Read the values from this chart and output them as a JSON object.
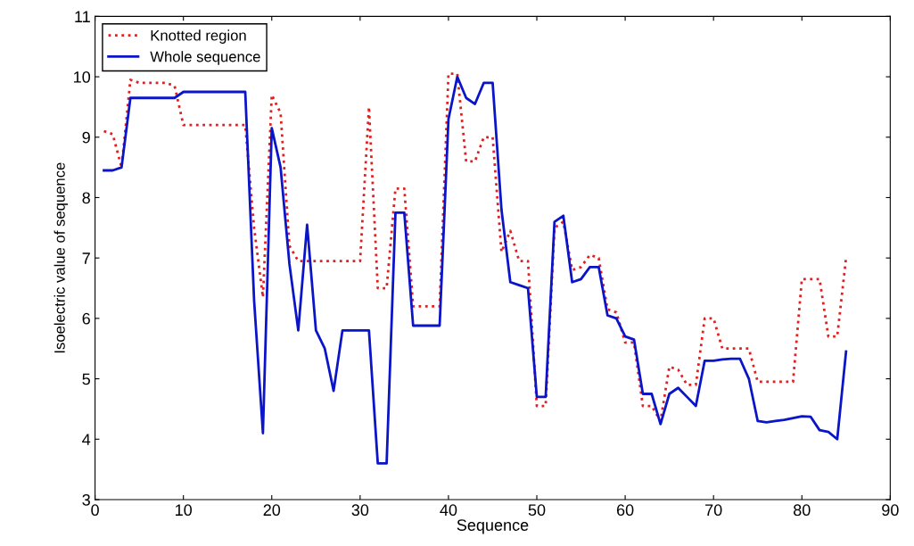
{
  "chart_data": {
    "type": "line",
    "xlabel": "Sequence",
    "ylabel": "Isoelectric value of sequence",
    "x": [
      1,
      2,
      3,
      4,
      5,
      6,
      7,
      8,
      9,
      10,
      11,
      12,
      13,
      14,
      15,
      16,
      17,
      18,
      19,
      20,
      21,
      22,
      23,
      24,
      25,
      26,
      27,
      28,
      29,
      30,
      31,
      32,
      33,
      34,
      35,
      36,
      37,
      38,
      39,
      40,
      41,
      42,
      43,
      44,
      45,
      46,
      47,
      48,
      49,
      50,
      51,
      52,
      53,
      54,
      55,
      56,
      57,
      58,
      59,
      60,
      61,
      62,
      63,
      64,
      65,
      66,
      67,
      68,
      69,
      70,
      71,
      72,
      73,
      74,
      75,
      76,
      77,
      78,
      79,
      80,
      81,
      82,
      83,
      84,
      85
    ],
    "series": [
      {
        "name": "Knotted region",
        "color": "#e02020",
        "line_style": "dotted",
        "values": [
          9.1,
          9.05,
          8.5,
          9.95,
          9.9,
          9.9,
          9.9,
          9.9,
          9.85,
          9.2,
          9.2,
          9.2,
          9.2,
          9.2,
          9.2,
          9.2,
          9.2,
          7.5,
          6.35,
          9.7,
          9.4,
          7.2,
          6.95,
          6.95,
          6.95,
          6.95,
          6.95,
          6.95,
          6.95,
          6.95,
          9.5,
          6.5,
          6.5,
          8.15,
          8.15,
          6.2,
          6.2,
          6.2,
          6.2,
          10.05,
          10.05,
          8.6,
          8.6,
          9.0,
          9.0,
          7.1,
          7.45,
          6.95,
          6.95,
          4.55,
          4.55,
          7.5,
          7.6,
          6.8,
          6.85,
          7.05,
          7.0,
          6.15,
          6.1,
          5.6,
          5.6,
          4.55,
          4.55,
          4.3,
          5.2,
          5.15,
          4.9,
          4.9,
          6.0,
          6.0,
          5.5,
          5.5,
          5.5,
          5.5,
          4.95,
          4.95,
          4.95,
          4.95,
          4.95,
          6.65,
          6.65,
          6.65,
          5.7,
          5.7,
          7.0
        ]
      },
      {
        "name": "Whole sequence",
        "color": "#0a14c8",
        "line_style": "solid",
        "values": [
          8.45,
          8.45,
          8.5,
          9.65,
          9.65,
          9.65,
          9.65,
          9.65,
          9.65,
          9.75,
          9.75,
          9.75,
          9.75,
          9.75,
          9.75,
          9.75,
          9.75,
          6.3,
          4.1,
          9.15,
          8.5,
          6.9,
          5.8,
          7.55,
          5.8,
          5.5,
          4.8,
          5.8,
          5.8,
          5.8,
          5.8,
          3.6,
          3.6,
          7.75,
          7.75,
          5.88,
          5.88,
          5.88,
          5.88,
          9.3,
          10.0,
          9.65,
          9.55,
          9.9,
          9.9,
          7.8,
          6.6,
          6.55,
          6.5,
          4.7,
          4.7,
          7.6,
          7.7,
          6.6,
          6.65,
          6.85,
          6.85,
          6.05,
          6.0,
          5.7,
          5.65,
          4.75,
          4.75,
          4.25,
          4.75,
          4.85,
          4.7,
          4.55,
          5.3,
          5.3,
          5.32,
          5.33,
          5.33,
          5.0,
          4.3,
          4.28,
          4.3,
          4.32,
          4.35,
          4.38,
          4.37,
          4.15,
          4.12,
          4.0,
          5.45
        ]
      }
    ],
    "xlim": [
      0,
      90
    ],
    "xticks": [
      0,
      10,
      20,
      30,
      40,
      50,
      60,
      70,
      80,
      90
    ],
    "ylim": [
      3,
      11
    ],
    "yticks": [
      3,
      4,
      5,
      6,
      7,
      8,
      9,
      10,
      11
    ],
    "grid": false,
    "legend": "top left",
    "marker": "none"
  }
}
